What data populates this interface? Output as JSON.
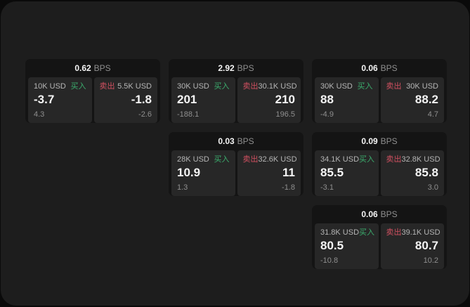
{
  "colors": {
    "page_bg": "#0a0a0a",
    "window_bg": "#1d1d1d",
    "card_bg": "#141414",
    "panel_bg": "#272727",
    "text_primary": "#f5f5f5",
    "text_secondary": "#b5b5b5",
    "text_muted": "#8f8f8f",
    "buy_green": "#3bac6d",
    "sell_red": "#d15060"
  },
  "labels": {
    "bps_unit": "BPS",
    "buy": "买入",
    "sell": "卖出"
  },
  "cards": [
    {
      "row": 1,
      "col": 1,
      "bps": "0.62",
      "buy_amount": "10K USD",
      "buy_price": "-3.7",
      "buy_sub": "4.3",
      "sell_amount": "5.5K USD",
      "sell_price": "-1.8",
      "sell_sub": "-2.6"
    },
    {
      "row": 1,
      "col": 2,
      "bps": "2.92",
      "buy_amount": "30K USD",
      "buy_price": "201",
      "buy_sub": "-188.1",
      "sell_amount": "30.1K USD",
      "sell_price": "210",
      "sell_sub": "196.5"
    },
    {
      "row": 1,
      "col": 3,
      "bps": "0.06",
      "buy_amount": "30K USD",
      "buy_price": "88",
      "buy_sub": "-4.9",
      "sell_amount": "30K USD",
      "sell_price": "88.2",
      "sell_sub": "4.7"
    },
    {
      "row": 2,
      "col": 2,
      "bps": "0.03",
      "buy_amount": "28K USD",
      "buy_price": "10.9",
      "buy_sub": "1.3",
      "sell_amount": "32.6K USD",
      "sell_price": "11",
      "sell_sub": "-1.8"
    },
    {
      "row": 2,
      "col": 3,
      "bps": "0.09",
      "buy_amount": "34.1K USD",
      "buy_price": "85.5",
      "buy_sub": "-3.1",
      "sell_amount": "32.8K USD",
      "sell_price": "85.8",
      "sell_sub": "3.0"
    },
    {
      "row": 3,
      "col": 3,
      "bps": "0.06",
      "buy_amount": "31.8K USD",
      "buy_price": "80.5",
      "buy_sub": "-10.8",
      "sell_amount": "39.1K USD",
      "sell_price": "80.7",
      "sell_sub": "10.2"
    }
  ]
}
